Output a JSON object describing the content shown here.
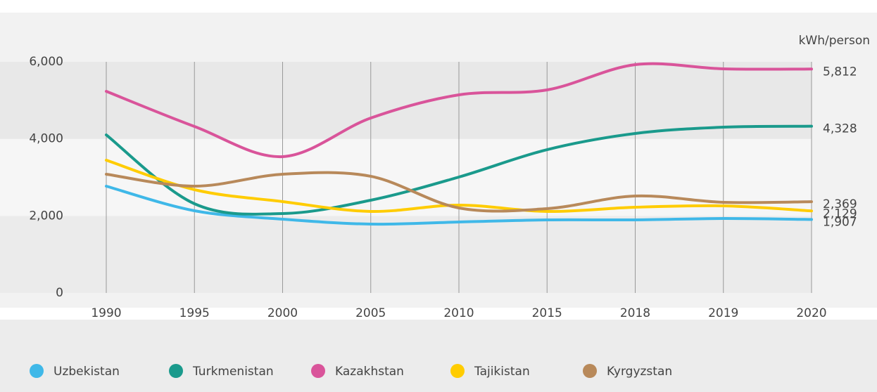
{
  "chart_data": {
    "type": "line",
    "y_axis_label": "kWh/person",
    "categories": [
      "1990",
      "1995",
      "2000",
      "2005",
      "2010",
      "2015",
      "2018",
      "2019",
      "2020"
    ],
    "ylim": [
      0,
      6000
    ],
    "yticks": [
      0,
      {
        "value": 2000,
        "label": "2,000"
      },
      {
        "value": 4000,
        "label": "4,000"
      },
      {
        "value": 6000,
        "label": "6,000"
      }
    ],
    "grid": true,
    "series": [
      {
        "name": "Uzbekistan",
        "color": "#3fb8e8",
        "values": [
          2772,
          2134,
          1915,
          1787,
          1842,
          1897,
          1897,
          1933,
          1907
        ],
        "value_labels": [
          null,
          null,
          null,
          null,
          null,
          null,
          null,
          null,
          "1,907"
        ]
      },
      {
        "name": "Turkmenistan",
        "color": "#1a9a8c",
        "values": [
          4103,
          2316,
          2061,
          2407,
          3009,
          3720,
          4140,
          4304,
          4328
        ],
        "value_labels": [
          null,
          null,
          null,
          null,
          null,
          null,
          null,
          null,
          "4,328"
        ]
      },
      {
        "name": "Kazakhstan",
        "color": "#d9549a",
        "values": [
          5234,
          4322,
          3538,
          4541,
          5143,
          5271,
          5927,
          5818,
          5812
        ],
        "value_labels": [
          null,
          null,
          null,
          null,
          null,
          null,
          null,
          null,
          "5,812"
        ]
      },
      {
        "name": "Tajikistan",
        "color": "#ffcc00",
        "values": [
          3447,
          2681,
          2371,
          2116,
          2280,
          2116,
          2225,
          2261,
          2129
        ],
        "value_labels": [
          null,
          null,
          null,
          null,
          null,
          null,
          null,
          null,
          "2,129"
        ]
      },
      {
        "name": "Kyrgyzstan",
        "color": "#b8895a",
        "values": [
          3082,
          2772,
          3082,
          3028,
          2207,
          2189,
          2517,
          2353,
          2369
        ],
        "value_labels": [
          null,
          null,
          null,
          null,
          null,
          null,
          null,
          null,
          "2,369"
        ]
      }
    ]
  }
}
